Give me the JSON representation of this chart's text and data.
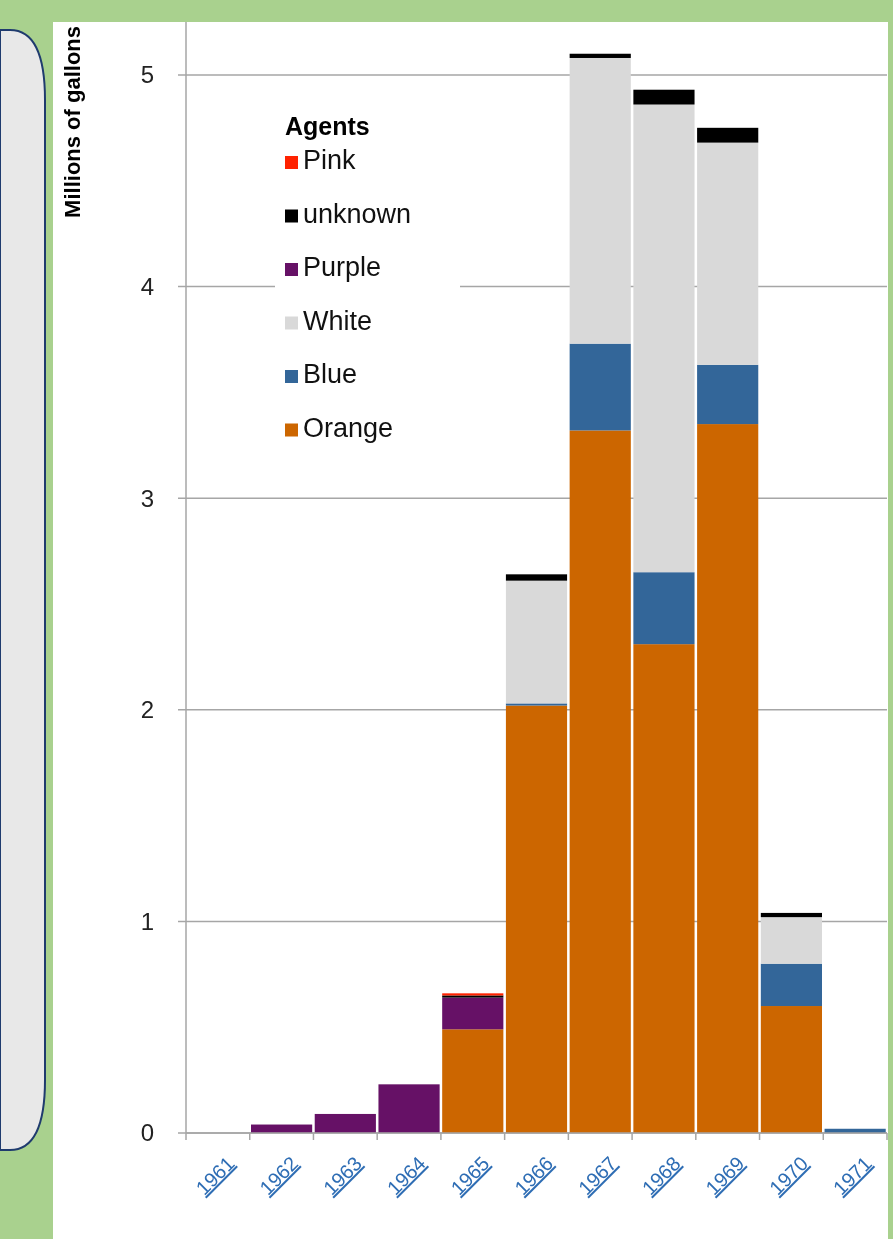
{
  "chart_data": {
    "type": "bar",
    "stacked": true,
    "ylabel": "Millions of gallons",
    "legend_title": "Agents",
    "legend": "top left",
    "grid": "y",
    "categories": [
      "1961",
      "1962",
      "1963",
      "1964",
      "1965",
      "1966",
      "1967",
      "1968",
      "1969",
      "1970",
      "1971"
    ],
    "ylim": [
      0,
      5.25
    ],
    "yticks": [
      0,
      1,
      2,
      3,
      4,
      5
    ],
    "series": [
      {
        "name": "Orange",
        "color": "#cc6600",
        "values": [
          0,
          0,
          0,
          0,
          0.49,
          2.02,
          3.32,
          2.31,
          3.35,
          0.6,
          0
        ]
      },
      {
        "name": "Blue",
        "color": "#336699",
        "values": [
          0,
          0,
          0,
          0,
          0,
          0.01,
          0.41,
          0.34,
          0.28,
          0.2,
          0.02
        ]
      },
      {
        "name": "White",
        "color": "#d9d9d9",
        "values": [
          0,
          0,
          0,
          0,
          0,
          0.58,
          1.35,
          2.21,
          1.05,
          0.22,
          0
        ]
      },
      {
        "name": "Purple",
        "color": "#661166",
        "values": [
          0,
          0.04,
          0.09,
          0.23,
          0.15,
          0,
          0,
          0,
          0,
          0,
          0
        ]
      },
      {
        "name": "unknown",
        "color": "#000000",
        "values": [
          0,
          0,
          0,
          0,
          0.01,
          0.03,
          0.02,
          0.07,
          0.07,
          0.02,
          null
        ]
      },
      {
        "name": "Pink",
        "color": "#ff2200",
        "values": [
          0,
          0,
          0,
          0,
          0.01,
          0,
          0,
          0,
          0,
          0,
          0
        ]
      }
    ]
  }
}
